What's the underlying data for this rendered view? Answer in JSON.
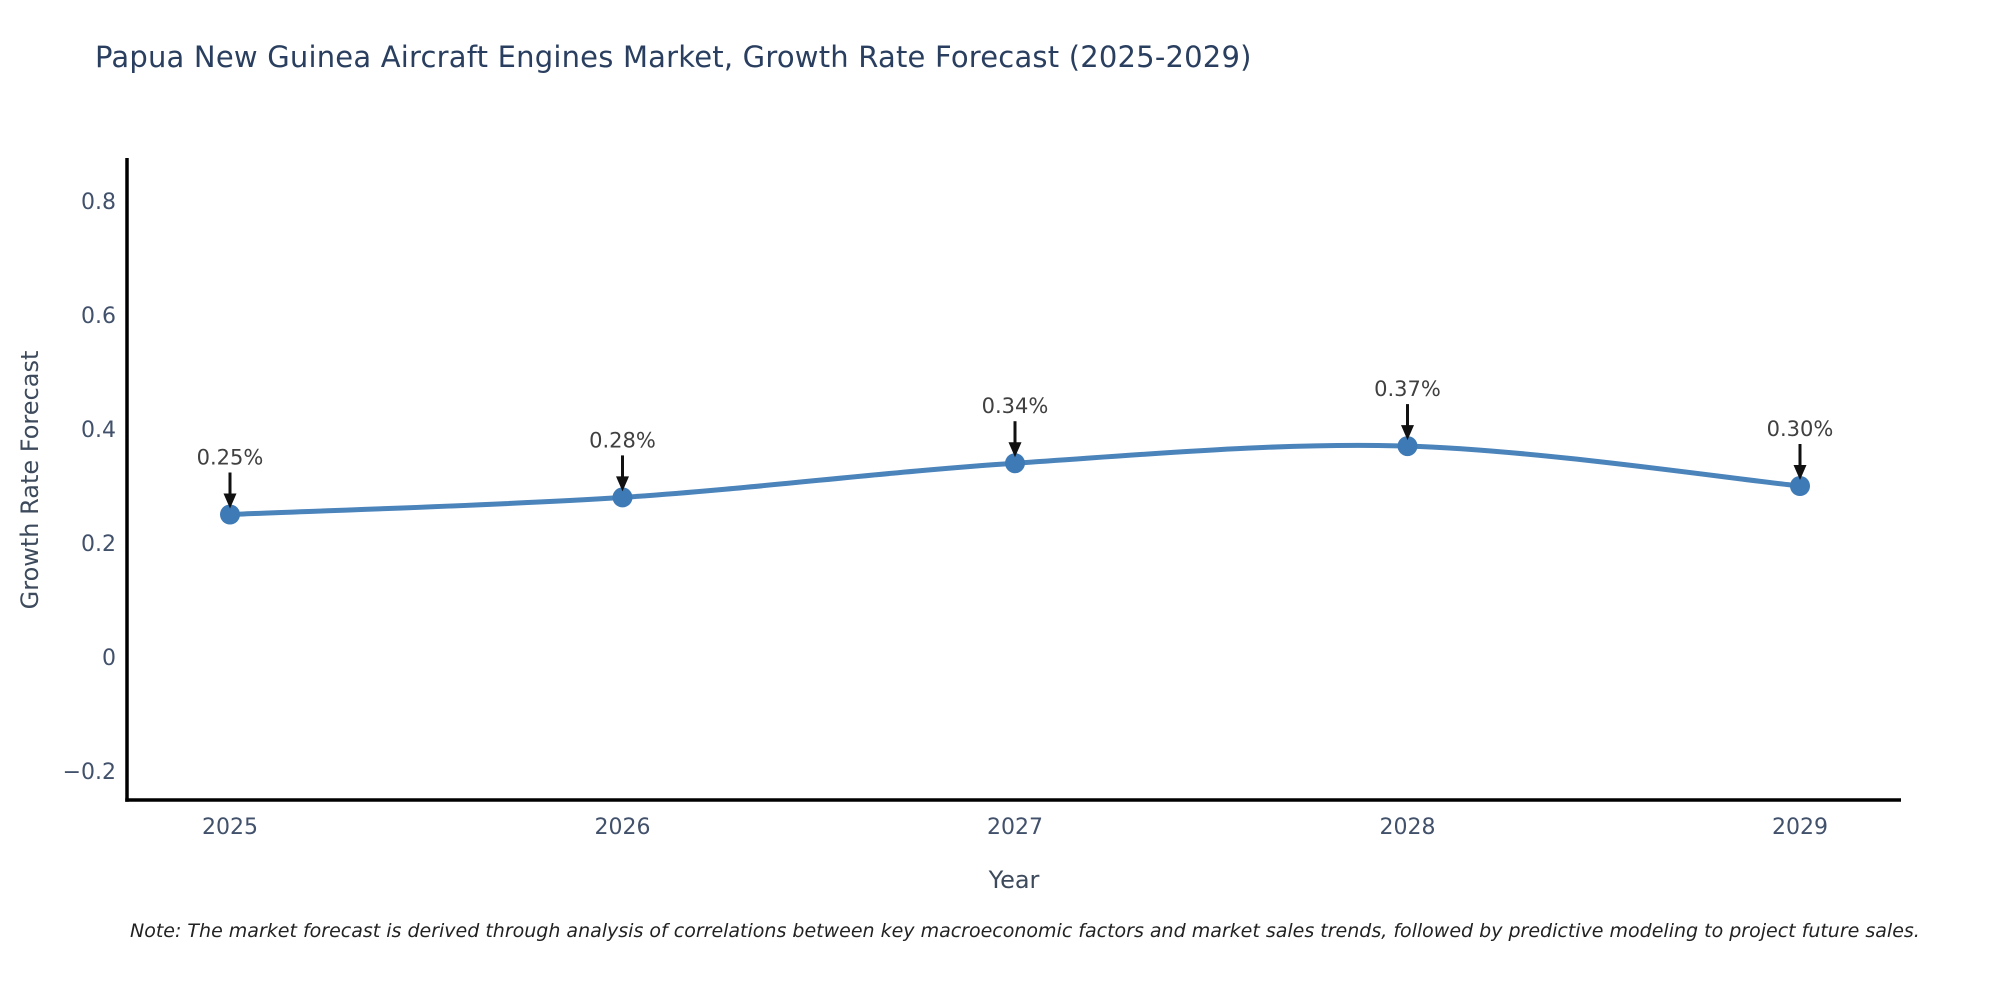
{
  "title": "Papua New Guinea Aircraft Engines Market, Growth Rate Forecast (2025-2029)",
  "note": "Note: The market forecast is derived through analysis of correlations between key macroeconomic factors and market sales trends, followed by predictive modeling to project future sales.",
  "chart_data": {
    "type": "line",
    "line_shape": "spline",
    "title": "Papua New Guinea Aircraft Engines Market, Growth Rate Forecast (2025-2029)",
    "xlabel": "Year",
    "ylabel": "Growth Rate Forecast",
    "x": [
      2025,
      2026,
      2027,
      2028,
      2029
    ],
    "x_tick_labels": [
      "2025",
      "2026",
      "2027",
      "2028",
      "2029"
    ],
    "values": [
      0.25,
      0.28,
      0.34,
      0.37,
      0.3
    ],
    "point_labels": [
      "0.25%",
      "0.28%",
      "0.34%",
      "0.37%",
      "0.30%"
    ],
    "y_ticks": [
      -0.2,
      0,
      0.2,
      0.4,
      0.6,
      0.8
    ],
    "y_tick_labels": [
      "−0.2",
      "0",
      "0.2",
      "0.4",
      "0.6",
      "0.8"
    ],
    "ylim": [
      -0.25,
      0.87
    ],
    "xlim": [
      2024.74,
      2029.26
    ],
    "grid": false,
    "legend": "none",
    "markers": true,
    "colors": {
      "line": "#4b83bb",
      "marker": "#3e7ab6",
      "axis": "#000000",
      "title": "#2a3f5f",
      "tick_label": "#42516b",
      "annotation_text": "#404040",
      "annotation_arrow": "#111111",
      "note_text": "#222222",
      "background": "#ffffff"
    }
  }
}
